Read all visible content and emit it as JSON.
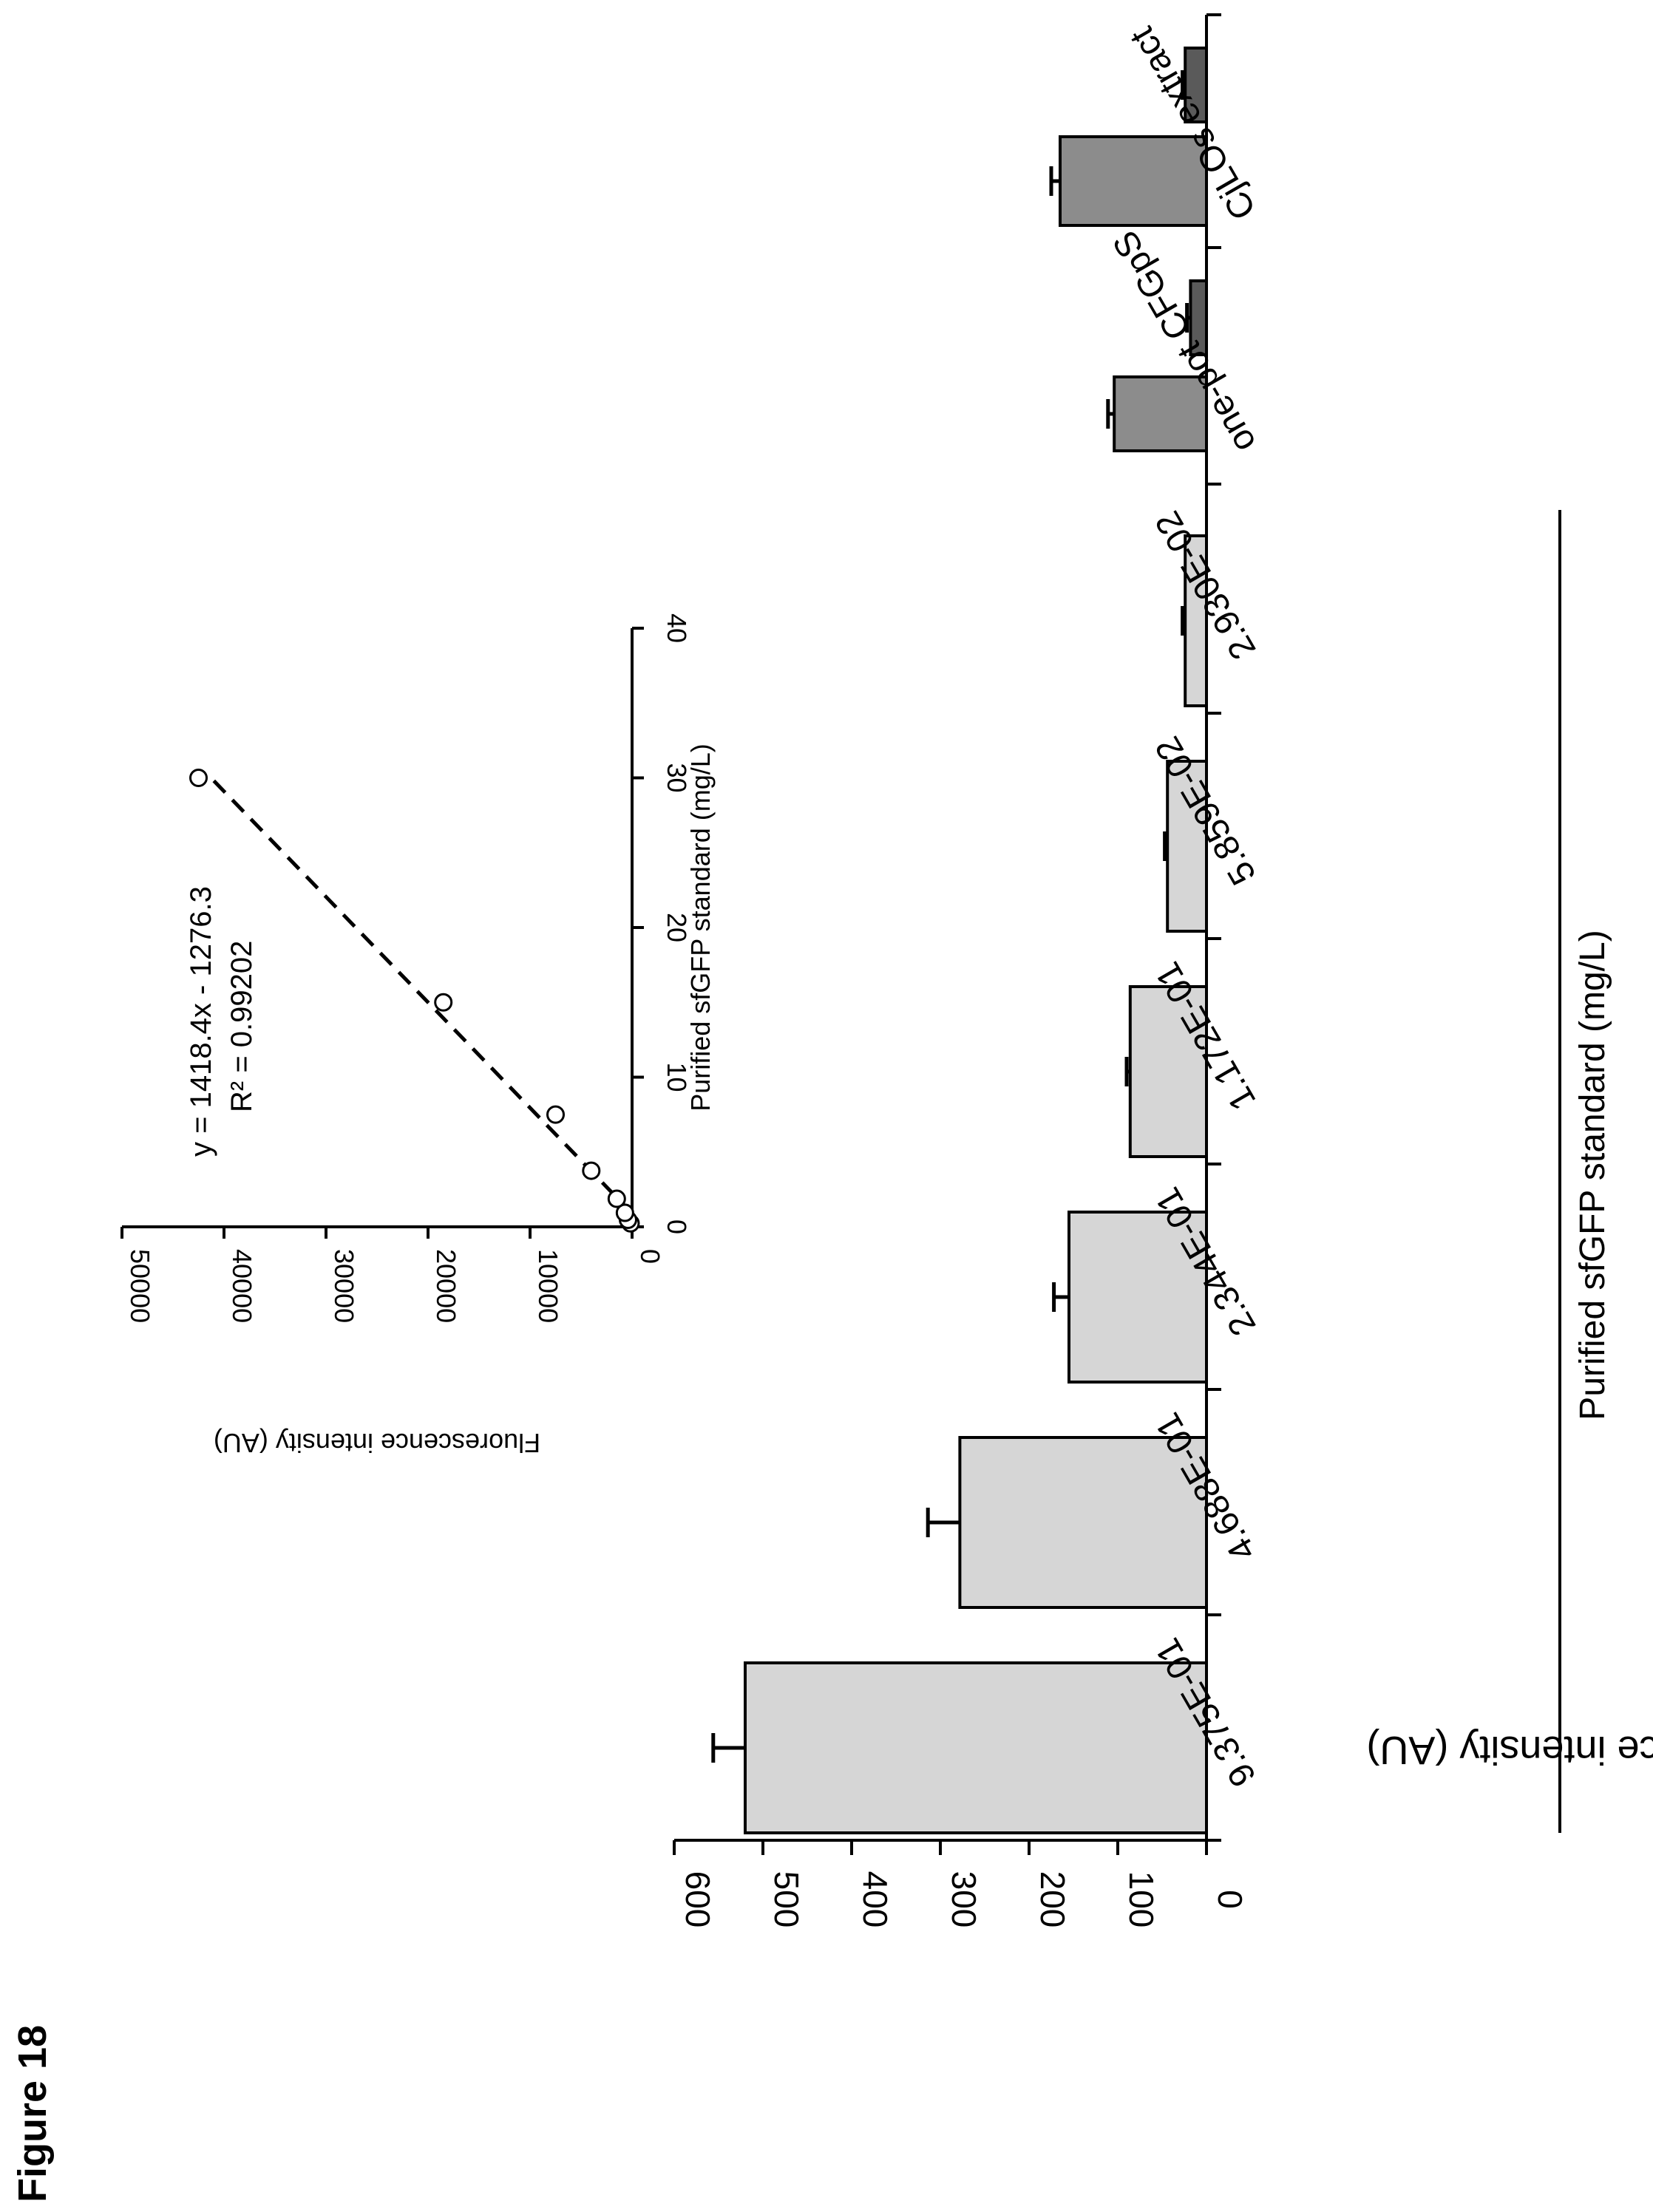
{
  "figure_label": "Figure 18",
  "chart_data": [
    {
      "type": "bar",
      "categories": [
        "9.375E-01",
        "4.688E-01",
        "2.344E-01",
        "1.172E-01",
        "5.859E-02",
        "2.930E-02",
        "one-pot CFGpS",
        "",
        "CjLOs extract",
        ""
      ],
      "values": [
        520,
        278,
        155,
        86,
        44,
        24,
        104,
        18,
        165,
        24
      ],
      "errors": [
        36,
        36,
        17,
        4,
        3,
        3,
        7,
        4,
        10,
        3
      ],
      "bar_colors": [
        "#d6d6d6",
        "#d6d6d6",
        "#d6d6d6",
        "#d6d6d6",
        "#d6d6d6",
        "#d6d6d6",
        "#8c8c8c",
        "#5a5a5a",
        "#8c8c8c",
        "#5a5a5a"
      ],
      "ylabel": "Fluorescence intensity (AU)",
      "ylim": [
        0,
        600
      ],
      "yticks": [
        "0",
        "100",
        "200",
        "300",
        "400",
        "500",
        "600"
      ],
      "group_label": "Purified sfGFP standard (mg/L)",
      "orientation": "rotated 90° clockwise"
    },
    {
      "type": "scatter",
      "x": [
        0.234,
        0.469,
        0.938,
        1.875,
        3.75,
        7.5,
        15,
        30
      ],
      "y": [
        150,
        400,
        700,
        1500,
        4000,
        7500,
        18500,
        42500
      ],
      "fit_equation": "y = 1418.4x - 1276.3",
      "r_squared": "R² = 0.99202",
      "fit_line": {
        "slope": 1418.4,
        "intercept": -1276.3
      },
      "xlabel": "Purified sfGFP standard (mg/L)",
      "ylabel": "Fluorescence intensity (AU)",
      "xlim": [
        0,
        40
      ],
      "ylim": [
        0,
        50000
      ],
      "xticks": [
        "0",
        "10",
        "20",
        "30",
        "40"
      ],
      "yticks": [
        "0",
        "10000",
        "20000",
        "30000",
        "40000",
        "50000"
      ]
    }
  ]
}
